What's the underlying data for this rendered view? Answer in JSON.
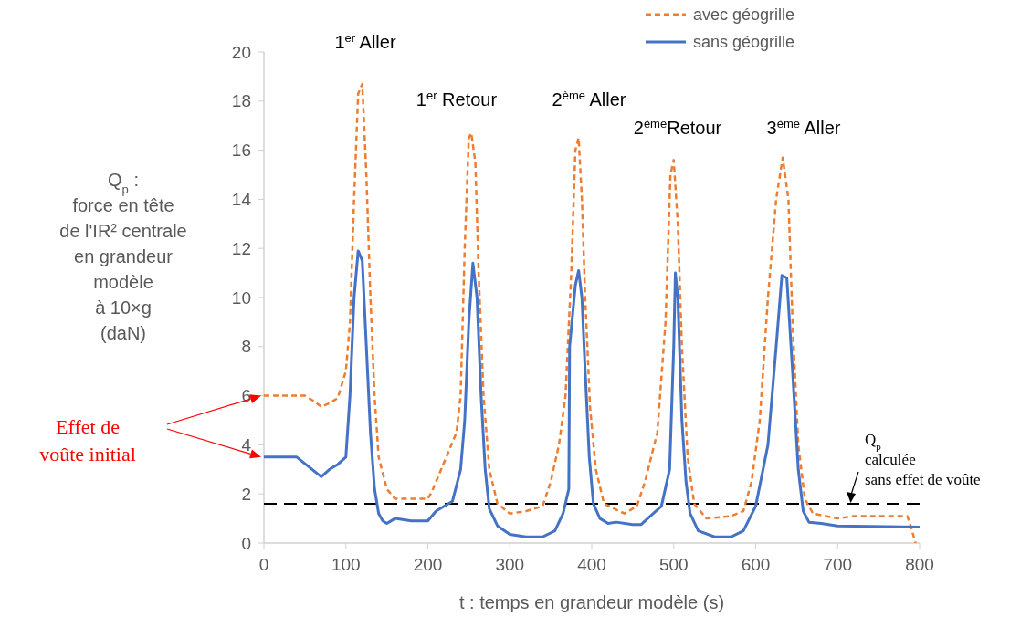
{
  "chart_data": {
    "type": "line",
    "xlabel": "t : temps en grandeur modèle (s)",
    "ylabel": "Q$_{p}$ :\nforce en tête\nde l'IR² centrale\nen grandeur\nmodèle\nà 10×g\n(daN)",
    "xlim": [
      0,
      800
    ],
    "xticks": [
      0,
      100,
      200,
      300,
      400,
      500,
      600,
      700,
      800
    ],
    "ylim": [
      0,
      20
    ],
    "yticks": [
      0,
      2,
      4,
      6,
      8,
      10,
      12,
      14,
      16,
      18,
      20
    ],
    "grid": false,
    "legend": "top right",
    "marker": "none",
    "series": [
      {
        "name": "avec géogrille",
        "color": "#ed7d31",
        "line_style": "dashed",
        "x": [
          0,
          50,
          60,
          70,
          80,
          90,
          100,
          105,
          110,
          115,
          120,
          125,
          130,
          135,
          140,
          150,
          160,
          200,
          205,
          220,
          235,
          240,
          245,
          250,
          253,
          258,
          262,
          268,
          275,
          285,
          300,
          320,
          340,
          350,
          360,
          368,
          375,
          380,
          384,
          388,
          392,
          398,
          405,
          415,
          440,
          455,
          465,
          480,
          490,
          496,
          500,
          505,
          510,
          517,
          525,
          540,
          570,
          585,
          595,
          605,
          615,
          625,
          633,
          640,
          645,
          652,
          660,
          670,
          700,
          720,
          785,
          790,
          795
        ],
        "values": [
          6.0,
          6.0,
          5.8,
          5.55,
          5.7,
          5.9,
          7,
          9,
          14,
          18.3,
          18.7,
          15,
          10,
          6,
          3.5,
          2.2,
          1.8,
          1.8,
          2.1,
          3.3,
          4.5,
          6,
          12,
          16.5,
          16.7,
          15.5,
          11,
          6,
          3,
          1.6,
          1.2,
          1.3,
          1.5,
          2.5,
          4,
          6,
          11,
          16,
          16.5,
          14,
          10,
          5.5,
          3,
          1.6,
          1.2,
          1.5,
          2.5,
          4.5,
          9,
          15,
          15.6,
          13,
          8,
          3.5,
          1.6,
          1.0,
          1.1,
          1.3,
          2.5,
          5,
          10,
          14,
          15.7,
          14,
          9,
          4,
          1.8,
          1.2,
          1.0,
          1.1,
          1.1,
          0.6,
          0
        ]
      },
      {
        "name": "sans géogrille",
        "color": "#4472c4",
        "line_style": "solid",
        "x": [
          0,
          40,
          55,
          70,
          80,
          90,
          100,
          105,
          110,
          115,
          120,
          125,
          130,
          135,
          140,
          145,
          150,
          160,
          180,
          200,
          210,
          230,
          240,
          245,
          250,
          255,
          260,
          265,
          270,
          275,
          285,
          300,
          320,
          340,
          355,
          365,
          372,
          373,
          380,
          384,
          388,
          392,
          397,
          402,
          410,
          420,
          430,
          450,
          460,
          475,
          485,
          495,
          500,
          502,
          505,
          510,
          515,
          520,
          530,
          550,
          570,
          585,
          600,
          615,
          625,
          632,
          638,
          645,
          652,
          658,
          665,
          680,
          700,
          800
        ],
        "values": [
          3.5,
          3.5,
          3.1,
          2.7,
          3.0,
          3.2,
          3.5,
          6,
          10,
          11.9,
          11.5,
          8,
          4.5,
          2.2,
          1.2,
          0.9,
          0.8,
          1.0,
          0.9,
          0.9,
          1.3,
          1.7,
          3,
          5,
          9,
          11.4,
          10,
          6,
          3,
          1.4,
          0.7,
          0.35,
          0.25,
          0.25,
          0.5,
          1.2,
          2.2,
          8,
          10.5,
          11.1,
          10,
          7,
          3.5,
          1.6,
          1.0,
          0.8,
          0.85,
          0.75,
          0.75,
          1.2,
          1.5,
          3,
          8,
          11.0,
          10,
          5,
          2.5,
          1.2,
          0.5,
          0.25,
          0.25,
          0.5,
          1.5,
          4,
          8,
          10.9,
          10.8,
          7,
          3,
          1.3,
          0.85,
          0.8,
          0.7,
          0.65
        ]
      }
    ],
    "ref_lines": [
      {
        "axis": "y",
        "value": 1.6,
        "label": "Q$_{p}$\ncalculée\nsans effet de voûte",
        "color": "#000000",
        "line_style": "dashed"
      }
    ],
    "annotations": [
      "1$^{er}$ Aller",
      "1$^{er}$ Retour",
      "2$^{ème}$ Aller",
      "2$^{ème}$Retour",
      "3$^{ème}$ Aller",
      "Effet de\nvoûte initial"
    ]
  }
}
